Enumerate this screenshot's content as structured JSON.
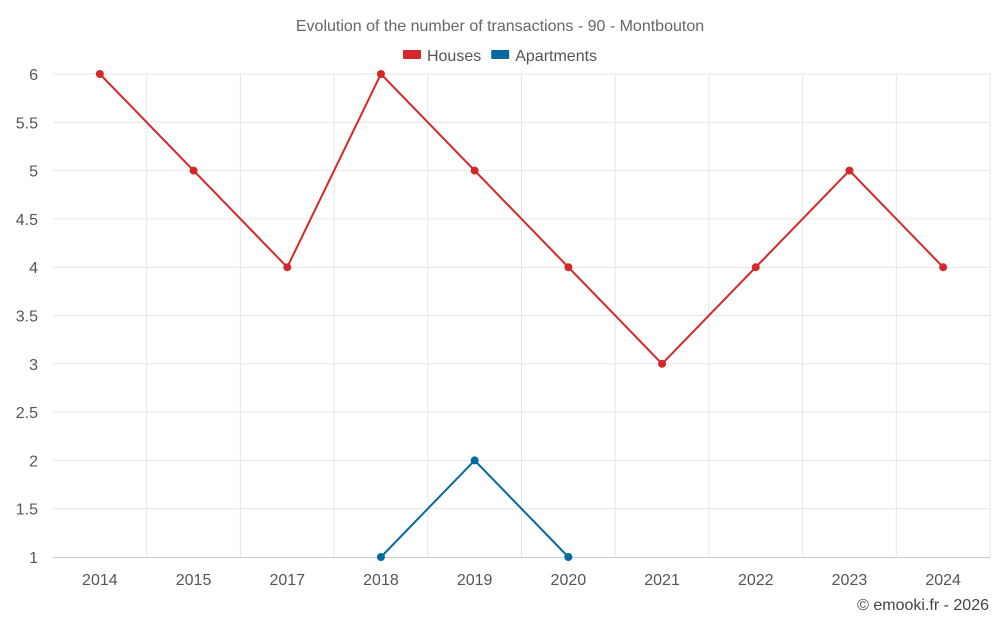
{
  "chart_data": {
    "type": "line",
    "title": "Evolution of the number of transactions - 90 - Montbouton",
    "categories": [
      "2014",
      "2015",
      "2017",
      "2018",
      "2019",
      "2020",
      "2021",
      "2022",
      "2023",
      "2024"
    ],
    "series": [
      {
        "name": "Houses",
        "color": "#d62728",
        "values": [
          6,
          5,
          4,
          6,
          5,
          4,
          3,
          4,
          5,
          4
        ]
      },
      {
        "name": "Apartments",
        "color": "#04699e",
        "values": [
          null,
          null,
          null,
          1,
          2,
          1,
          null,
          null,
          null,
          null
        ]
      }
    ],
    "yticks": [
      "1",
      "1.5",
      "2",
      "2.5",
      "3",
      "3.5",
      "4",
      "4.5",
      "5",
      "5.5",
      "6"
    ],
    "ylim": [
      1,
      6
    ],
    "grid": true,
    "legend_position": "top-center"
  },
  "credit": "© emooki.fr - 2026"
}
